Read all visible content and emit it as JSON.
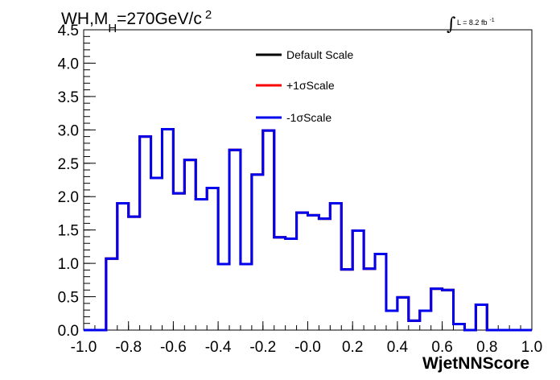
{
  "chart_data": {
    "type": "line",
    "title_main": "WH,M",
    "title_sub": "H",
    "title_rest": "=270GeV/c",
    "title_sup": "2",
    "lumi_integral": "∫",
    "lumi_text": "L = 8.2 fb",
    "lumi_sup": "-1",
    "xlabel": "WjetNNScore",
    "ylabel": "",
    "xlim": [
      -1.0,
      1.0
    ],
    "ylim": [
      0.0,
      4.5
    ],
    "x_ticks": [
      "-1.0",
      "-0.8",
      "-0.6",
      "-0.4",
      "-0.2",
      "-0.0",
      "0.2",
      "0.4",
      "0.6",
      "0.8",
      "1.0"
    ],
    "y_ticks": [
      "0.0",
      "0.5",
      "1.0",
      "1.5",
      "2.0",
      "2.5",
      "3.0",
      "3.5",
      "4.0",
      "4.5"
    ],
    "bin_edges": [
      -1.0,
      -0.95,
      -0.9,
      -0.85,
      -0.8,
      -0.75,
      -0.7,
      -0.65,
      -0.6,
      -0.55,
      -0.5,
      -0.45,
      -0.4,
      -0.35,
      -0.3,
      -0.25,
      -0.2,
      -0.15,
      -0.1,
      -0.05,
      0.0,
      0.05,
      0.1,
      0.15,
      0.2,
      0.25,
      0.3,
      0.35,
      0.4,
      0.45,
      0.5,
      0.55,
      0.6,
      0.65,
      0.7,
      0.75,
      0.8,
      0.85,
      0.9,
      0.95,
      1.0
    ],
    "series": [
      {
        "name": "Default Scale",
        "color": "#000000",
        "values": [
          0,
          0,
          1.07,
          1.9,
          1.7,
          2.9,
          2.28,
          3.01,
          2.05,
          2.55,
          1.96,
          2.13,
          0.99,
          2.7,
          0.99,
          2.33,
          2.99,
          1.39,
          1.37,
          1.76,
          1.72,
          1.67,
          1.9,
          0.91,
          1.49,
          0.92,
          1.14,
          0.29,
          0.49,
          0.14,
          0.29,
          0.62,
          0.6,
          0.09,
          0.0,
          0.38,
          0.0,
          0.0,
          0.0,
          0.0
        ]
      },
      {
        "name": "+1σScale",
        "color": "#ff0000",
        "values": [
          0,
          0,
          1.07,
          1.9,
          1.7,
          2.9,
          2.28,
          3.01,
          2.05,
          2.55,
          1.96,
          2.13,
          0.99,
          2.7,
          0.99,
          2.33,
          2.99,
          1.39,
          1.37,
          1.76,
          1.72,
          1.67,
          1.9,
          0.91,
          1.49,
          0.92,
          1.14,
          0.29,
          0.49,
          0.14,
          0.29,
          0.62,
          0.6,
          0.09,
          0.0,
          0.38,
          0.0,
          0.0,
          0.0,
          0.0
        ]
      },
      {
        "name": "-1σScale",
        "color": "#0000ee",
        "values": [
          0,
          0,
          1.07,
          1.9,
          1.7,
          2.9,
          2.28,
          3.01,
          2.05,
          2.55,
          1.96,
          2.13,
          0.99,
          2.7,
          0.99,
          2.33,
          2.99,
          1.39,
          1.37,
          1.76,
          1.72,
          1.67,
          1.9,
          0.91,
          1.49,
          0.92,
          1.14,
          0.29,
          0.49,
          0.14,
          0.29,
          0.62,
          0.6,
          0.09,
          0.0,
          0.38,
          0.0,
          0.0,
          0.0,
          0.0
        ]
      }
    ],
    "legend_position": "top-center",
    "grid": false
  }
}
